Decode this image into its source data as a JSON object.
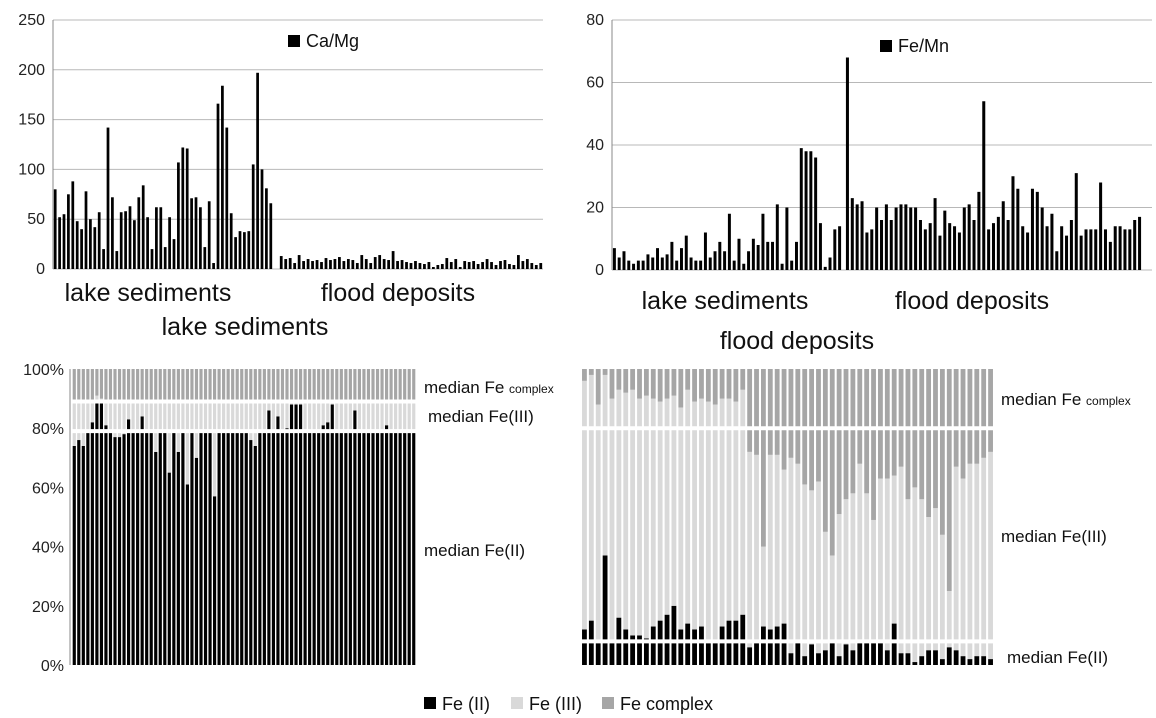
{
  "chart_data": [
    {
      "type": "bar",
      "legend": "Ca/Mg",
      "ylim": [
        0,
        250
      ],
      "yticks": [
        "0",
        "50",
        "100",
        "150",
        "200",
        "250"
      ],
      "group_labels": [
        "lake sediments",
        "flood deposits"
      ],
      "caption": "lake sediments",
      "grid": true,
      "color": "#000000",
      "series": [
        {
          "group": "lake sediments",
          "values": [
            80,
            52,
            55,
            75,
            88,
            48,
            40,
            78,
            50,
            42,
            57,
            20,
            142,
            72,
            18,
            57,
            58,
            63,
            49,
            72,
            84,
            52,
            20,
            62,
            62,
            22,
            52,
            30,
            107,
            122,
            121,
            71,
            72,
            62,
            22,
            68,
            6,
            166,
            184,
            142,
            56,
            32,
            38,
            37,
            38,
            105,
            197,
            100,
            81,
            66
          ]
        },
        {
          "group": "flood deposits",
          "values": [
            13,
            10,
            11,
            6,
            14,
            8,
            10,
            8,
            9,
            7,
            11,
            9,
            10,
            12,
            8,
            10,
            9,
            6,
            14,
            10,
            6,
            12,
            14,
            10,
            9,
            18,
            8,
            9,
            7,
            6,
            8,
            6,
            5,
            7,
            2,
            4,
            5,
            11,
            7,
            10,
            2,
            8,
            7,
            8,
            5,
            7,
            10,
            7,
            4,
            8,
            9,
            5,
            4,
            14,
            8,
            10,
            6,
            4,
            6
          ]
        }
      ]
    },
    {
      "type": "bar",
      "legend": "Fe/Mn",
      "ylim": [
        0,
        80
      ],
      "yticks": [
        "0",
        "20",
        "40",
        "60",
        "80"
      ],
      "group_labels": [
        "lake sediments",
        "flood deposits"
      ],
      "caption": "flood deposits",
      "grid": true,
      "color": "#000000",
      "series": [
        {
          "group": "lake sediments",
          "values": [
            7,
            4,
            6,
            3,
            2,
            3,
            3,
            5,
            4,
            7,
            4,
            5,
            9,
            3,
            7,
            11,
            4,
            3,
            3,
            12,
            4,
            6,
            9,
            6,
            18,
            3,
            10,
            2,
            6,
            10,
            8,
            18,
            9,
            9,
            21,
            2,
            20,
            3,
            9,
            39,
            38,
            38,
            36,
            15,
            1,
            4,
            13,
            14
          ]
        },
        {
          "group": "flood deposits",
          "values": [
            68,
            23,
            21,
            22,
            12,
            13,
            20,
            16,
            21,
            16,
            20,
            21,
            21,
            20,
            20,
            16,
            13,
            15,
            23,
            11,
            19,
            15,
            14,
            12,
            20,
            21,
            16,
            25,
            54,
            13,
            15,
            17,
            22,
            16,
            30,
            26,
            14,
            12,
            26,
            25,
            20,
            14,
            18,
            6,
            14,
            11,
            16,
            31,
            11,
            13,
            13,
            13,
            28,
            13,
            9,
            14,
            14,
            13,
            13,
            16,
            17
          ]
        }
      ]
    },
    {
      "type": "bar",
      "stacked_percent": true,
      "ylim": [
        0,
        100
      ],
      "yticks": [
        "0%",
        "20%",
        "40%",
        "60%",
        "80%",
        "100%"
      ],
      "legend": [
        "Fe (II)",
        "Fe (III)",
        "Fe complex"
      ],
      "colors": {
        "fe2": "#000000",
        "fe3": "#d9d9d9",
        "complex": "#a6a6a6"
      },
      "annotations": [
        {
          "main": "median Fe ",
          "sub": "complex"
        },
        {
          "main": "median Fe(III)",
          "sub": ""
        },
        {
          "main": "median Fe(II)",
          "sub": ""
        }
      ],
      "median_pct": {
        "fe2": 79,
        "fe3": 10,
        "complex": 11
      },
      "fe2": [
        74,
        76,
        74,
        79,
        82,
        89,
        89,
        81,
        79,
        77,
        77,
        78,
        83,
        79,
        79,
        84,
        79,
        79,
        72,
        79,
        79,
        65,
        79,
        72,
        79,
        61,
        79,
        70,
        79,
        79,
        79,
        57,
        79,
        79,
        79,
        79,
        79,
        79,
        79,
        76,
        74,
        79,
        79,
        86,
        79,
        84,
        79,
        80,
        88,
        88,
        88,
        79,
        79,
        79,
        79,
        81,
        82,
        88,
        79,
        79,
        79,
        79,
        86,
        79,
        79,
        79,
        79,
        79,
        79,
        81,
        79,
        79,
        79,
        79,
        79,
        79
      ],
      "fe3": [
        15,
        13,
        15,
        10,
        7,
        2,
        1,
        8,
        10,
        12,
        12,
        11,
        6,
        10,
        10,
        5,
        10,
        10,
        17,
        10,
        10,
        24,
        10,
        17,
        10,
        28,
        10,
        19,
        10,
        10,
        10,
        32,
        10,
        10,
        10,
        10,
        10,
        10,
        10,
        13,
        15,
        10,
        10,
        3,
        10,
        5,
        10,
        9,
        1,
        1,
        1,
        10,
        10,
        10,
        10,
        8,
        7,
        1,
        10,
        10,
        10,
        10,
        3,
        10,
        10,
        10,
        10,
        10,
        10,
        8,
        10,
        10,
        10,
        10,
        10,
        10
      ]
    },
    {
      "type": "bar",
      "stacked_percent": true,
      "ylim": [
        0,
        100
      ],
      "annotations": [
        {
          "main": "median Fe ",
          "sub": "complex"
        },
        {
          "main": "median Fe(III)",
          "sub": ""
        },
        {
          "main": "median Fe(II)",
          "sub": ""
        }
      ],
      "median_pct": {
        "fe2": 8,
        "fe3": 72,
        "complex": 20
      },
      "fe2": [
        12,
        15,
        8,
        37,
        8,
        16,
        12,
        10,
        10,
        9,
        13,
        15,
        17,
        20,
        12,
        14,
        12,
        13,
        8,
        8,
        13,
        15,
        15,
        17,
        6,
        8,
        13,
        12,
        13,
        14,
        4,
        8,
        3,
        7,
        4,
        5,
        8,
        3,
        7,
        5,
        8,
        8,
        8,
        8,
        5,
        14,
        4,
        4,
        1,
        3,
        5,
        5,
        2,
        6,
        5,
        3,
        2,
        3,
        3,
        2
      ],
      "fe3": [
        84,
        83,
        80,
        61,
        82,
        77,
        80,
        83,
        80,
        82,
        77,
        74,
        73,
        71,
        75,
        79,
        77,
        77,
        81,
        80,
        77,
        75,
        74,
        76,
        66,
        63,
        27,
        59,
        58,
        52,
        66,
        60,
        58,
        52,
        58,
        40,
        29,
        48,
        49,
        53,
        60,
        50,
        41,
        55,
        58,
        50,
        63,
        52,
        59,
        53,
        45,
        48,
        42,
        19,
        62,
        60,
        66,
        65,
        67,
        70
      ]
    }
  ]
}
